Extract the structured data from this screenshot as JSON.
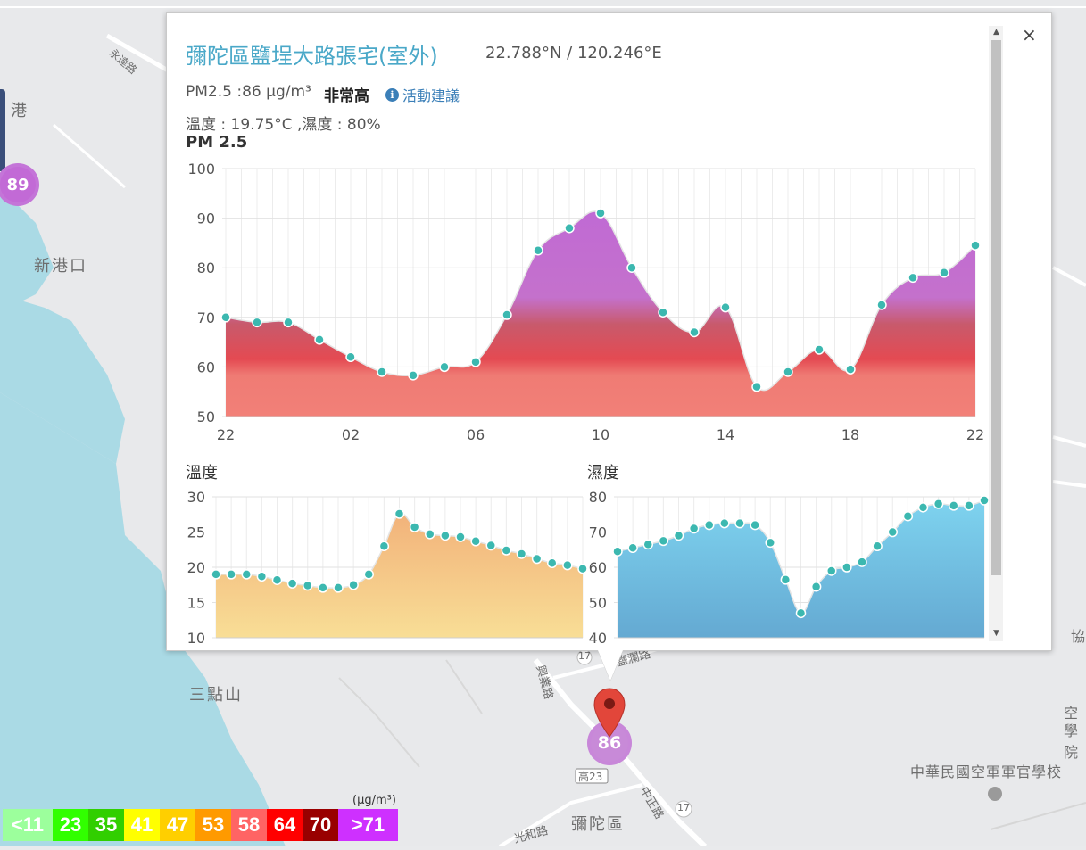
{
  "map": {
    "labels": [
      "港",
      "新港口",
      "三點山",
      "永達路",
      "高23",
      "彌陀區",
      "中華民國空軍軍官學校",
      "空",
      "學院",
      "17",
      "光和路",
      "中正路",
      "興業路",
      "鹽瀾路",
      "協",
      "17"
    ],
    "clusters": [
      {
        "value": "89",
        "color": "#c06ad4"
      },
      {
        "value": "86",
        "color": "#c06ad4"
      }
    ]
  },
  "popup": {
    "title": "彌陀區鹽埕大路張宅(室外)",
    "coords": "22.788°N / 120.246°E",
    "pm_text": "PM2.5 :86 μg/m³",
    "pm_level": "非常高",
    "advice_label": "活動建議",
    "info_icon": "info-icon",
    "env_text": "溫度 : 19.75°C ,濕度 : 80%",
    "close_label": "×",
    "pm_heading": "PM 2.5",
    "temp_heading": "溫度",
    "humid_heading": "濕度",
    "scroll_up": "▲",
    "scroll_down": "▼"
  },
  "legend": {
    "unit": "(μg/m³)",
    "items": [
      {
        "label": "<11",
        "color": "#9cff9c"
      },
      {
        "label": "23",
        "color": "#31ff00"
      },
      {
        "label": "35",
        "color": "#31cf00"
      },
      {
        "label": "41",
        "color": "#ffff00"
      },
      {
        "label": "47",
        "color": "#ffcf00"
      },
      {
        "label": "53",
        "color": "#ff9a00"
      },
      {
        "label": "58",
        "color": "#ff6464"
      },
      {
        "label": "64",
        "color": "#ff0000"
      },
      {
        "label": "70",
        "color": "#990000"
      },
      {
        "label": ">71",
        "color": "#ce30ff"
      }
    ]
  },
  "chart_data": [
    {
      "type": "area",
      "title": "PM 2.5",
      "ylim": [
        50,
        100
      ],
      "yticks": [
        "50",
        "60",
        "70",
        "80",
        "90",
        "100"
      ],
      "xticks": [
        "22",
        "02",
        "06",
        "10",
        "14",
        "18",
        "22"
      ],
      "grid": true,
      "series": [
        {
          "values": [
            70,
            69,
            69,
            65.5,
            62,
            59,
            58.3,
            60,
            61,
            70.5,
            83.5,
            88,
            91,
            80,
            71,
            67,
            72,
            56,
            59,
            63.5,
            59.5,
            72.5,
            78,
            79,
            84.5
          ]
        }
      ]
    },
    {
      "type": "area",
      "title": "溫度",
      "ylim": [
        10,
        30
      ],
      "yticks": [
        "10",
        "15",
        "20",
        "25",
        "30"
      ],
      "grid": true,
      "series": [
        {
          "values": [
            19,
            19,
            19,
            18.7,
            18.2,
            17.7,
            17.4,
            17.1,
            17.1,
            17.5,
            19,
            23,
            27.6,
            25.7,
            24.7,
            24.5,
            24.3,
            23.7,
            23.1,
            22.4,
            21.9,
            21.2,
            20.6,
            20.3,
            19.8
          ]
        }
      ]
    },
    {
      "type": "area",
      "title": "濕度",
      "ylim": [
        40,
        80
      ],
      "yticks": [
        "40",
        "50",
        "60",
        "70",
        "80"
      ],
      "grid": true,
      "series": [
        {
          "values": [
            64.5,
            65.5,
            66.5,
            67.5,
            69,
            71,
            72,
            72.5,
            72.5,
            72,
            67,
            56.5,
            47,
            54.5,
            59,
            60,
            61.5,
            66,
            70,
            74.5,
            77,
            78,
            77.5,
            77.5,
            79
          ]
        }
      ]
    }
  ]
}
